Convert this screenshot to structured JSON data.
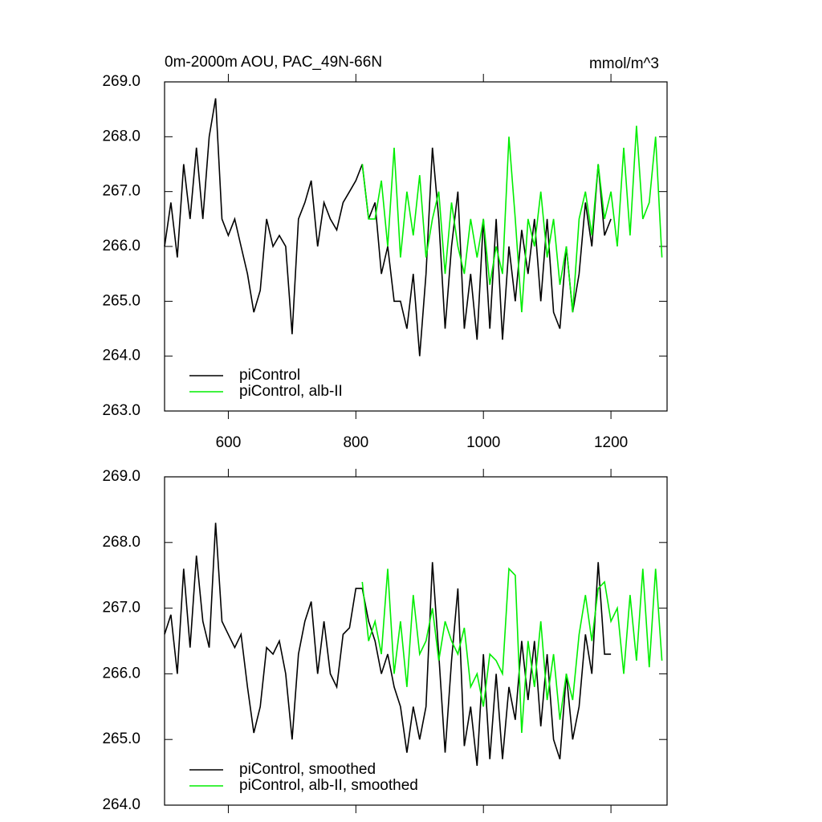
{
  "chart_data": [
    {
      "type": "line",
      "title": "0m-2000m AOU, PAC_49N-66N",
      "units": "mmol/m^3",
      "x": [
        500,
        510,
        520,
        530,
        540,
        550,
        560,
        570,
        580,
        590,
        600,
        610,
        620,
        630,
        640,
        650,
        660,
        670,
        680,
        690,
        700,
        710,
        720,
        730,
        740,
        750,
        760,
        770,
        780,
        790,
        800,
        810,
        820,
        830,
        840,
        850,
        860,
        870,
        880,
        890,
        900,
        910,
        920,
        930,
        940,
        950,
        960,
        970,
        980,
        990,
        1000,
        1010,
        1020,
        1030,
        1040,
        1050,
        1060,
        1070,
        1080,
        1090,
        1100,
        1110,
        1120,
        1130,
        1140,
        1150,
        1160,
        1170,
        1180,
        1190,
        1200,
        1210,
        1220,
        1230,
        1240,
        1250,
        1260,
        1270,
        1280
      ],
      "series": [
        {
          "name": "piControl",
          "color": "#000000",
          "values": [
            266.0,
            266.8,
            265.8,
            267.5,
            266.5,
            267.8,
            266.5,
            268.0,
            268.7,
            266.5,
            266.2,
            266.5,
            266.0,
            265.5,
            264.8,
            265.2,
            266.5,
            266.0,
            266.2,
            266.0,
            264.4,
            266.5,
            266.8,
            267.2,
            266.0,
            266.8,
            266.5,
            266.3,
            266.8,
            267.0,
            267.2,
            267.5,
            266.5,
            266.8,
            265.5,
            266.0,
            265.0,
            265.0,
            264.5,
            265.5,
            264.0,
            265.5,
            267.8,
            266.5,
            264.5,
            266.0,
            267.0,
            264.5,
            265.5,
            264.3,
            266.5,
            264.5,
            266.5,
            264.3,
            266.0,
            265.0,
            266.3,
            265.5,
            266.5,
            265.0,
            266.5,
            264.8,
            264.5,
            266.0,
            264.8,
            265.5,
            266.8,
            266.0,
            267.5,
            266.2,
            266.5,
            null,
            null,
            null,
            null,
            null,
            null,
            null,
            null
          ]
        },
        {
          "name": "piControl, alb-II",
          "color": "#00ee00",
          "values": [
            null,
            null,
            null,
            null,
            null,
            null,
            null,
            null,
            null,
            null,
            null,
            null,
            null,
            null,
            null,
            null,
            null,
            null,
            null,
            null,
            null,
            null,
            null,
            null,
            null,
            null,
            null,
            null,
            null,
            null,
            null,
            267.5,
            266.5,
            266.5,
            267.2,
            266.0,
            267.8,
            265.8,
            267.0,
            266.2,
            267.3,
            265.8,
            266.5,
            267.0,
            265.5,
            266.8,
            266.0,
            265.5,
            266.5,
            265.8,
            266.5,
            265.3,
            266.0,
            265.5,
            268.0,
            266.5,
            264.8,
            266.5,
            266.0,
            267.0,
            265.8,
            266.5,
            265.3,
            266.0,
            264.8,
            266.5,
            267.0,
            266.2,
            267.5,
            266.5,
            267.0,
            266.0,
            267.8,
            266.2,
            268.2,
            266.5,
            266.8,
            268.0,
            265.8
          ]
        }
      ],
      "xlim": [
        500,
        1288
      ],
      "xticks": [
        600,
        800,
        1000,
        1200
      ],
      "xtick_labels": true,
      "ylim": [
        263,
        269
      ],
      "yticks": [
        {
          "value": 263,
          "label": "263.0"
        },
        {
          "value": 264,
          "label": "264.0"
        },
        {
          "value": 265,
          "label": "265.0"
        },
        {
          "value": 266,
          "label": "266.0"
        },
        {
          "value": 267,
          "label": "267.0"
        },
        {
          "value": 268,
          "label": "268.0"
        },
        {
          "value": 269,
          "label": "269.0"
        }
      ],
      "legend": "lower left"
    },
    {
      "type": "line",
      "x": [
        500,
        510,
        520,
        530,
        540,
        550,
        560,
        570,
        580,
        590,
        600,
        610,
        620,
        630,
        640,
        650,
        660,
        670,
        680,
        690,
        700,
        710,
        720,
        730,
        740,
        750,
        760,
        770,
        780,
        790,
        800,
        810,
        820,
        830,
        840,
        850,
        860,
        870,
        880,
        890,
        900,
        910,
        920,
        930,
        940,
        950,
        960,
        970,
        980,
        990,
        1000,
        1010,
        1020,
        1030,
        1040,
        1050,
        1060,
        1070,
        1080,
        1090,
        1100,
        1110,
        1120,
        1130,
        1140,
        1150,
        1160,
        1170,
        1180,
        1190,
        1200,
        1210,
        1220,
        1230,
        1240,
        1250,
        1260,
        1270,
        1280
      ],
      "series": [
        {
          "name": "piControl, smoothed",
          "color": "#000000",
          "values": [
            266.6,
            266.9,
            266.0,
            267.6,
            266.4,
            267.8,
            266.8,
            266.4,
            268.3,
            266.8,
            266.6,
            266.4,
            266.6,
            265.8,
            265.1,
            265.5,
            266.4,
            266.3,
            266.5,
            266.0,
            265.0,
            266.3,
            266.8,
            267.1,
            266.0,
            266.8,
            266.0,
            265.8,
            266.6,
            266.7,
            267.3,
            267.3,
            266.8,
            266.5,
            266.0,
            266.3,
            265.8,
            265.5,
            264.8,
            265.5,
            265.0,
            265.5,
            267.7,
            266.3,
            264.8,
            266.2,
            267.3,
            264.9,
            265.5,
            264.6,
            266.3,
            264.7,
            266.0,
            264.7,
            265.8,
            265.3,
            266.5,
            265.6,
            266.5,
            265.2,
            266.3,
            265.0,
            264.7,
            266.0,
            265.0,
            265.5,
            266.6,
            266.0,
            267.7,
            266.3,
            266.3,
            null,
            null,
            null,
            null,
            null,
            null,
            null,
            null
          ]
        },
        {
          "name": "piControl, alb-II, smoothed",
          "color": "#00ee00",
          "values": [
            null,
            null,
            null,
            null,
            null,
            null,
            null,
            null,
            null,
            null,
            null,
            null,
            null,
            null,
            null,
            null,
            null,
            null,
            null,
            null,
            null,
            null,
            null,
            null,
            null,
            null,
            null,
            null,
            null,
            null,
            null,
            267.4,
            266.5,
            266.8,
            266.3,
            267.6,
            266.0,
            266.8,
            265.8,
            267.2,
            266.3,
            266.5,
            267.0,
            266.2,
            266.8,
            266.5,
            266.3,
            266.7,
            265.8,
            266.0,
            265.5,
            266.3,
            266.2,
            266.0,
            267.6,
            267.5,
            265.1,
            266.5,
            265.8,
            266.8,
            265.6,
            266.3,
            265.3,
            266.0,
            265.6,
            266.6,
            267.2,
            266.5,
            267.3,
            267.4,
            266.8,
            267.0,
            266.0,
            267.2,
            266.2,
            267.6,
            266.1,
            267.6,
            266.2
          ]
        }
      ],
      "xlim": [
        500,
        1288
      ],
      "xticks": [
        600,
        800,
        1000,
        1200
      ],
      "xtick_labels": false,
      "ylim": [
        264,
        269
      ],
      "yticks": [
        {
          "value": 264,
          "label": "264.0"
        },
        {
          "value": 265,
          "label": "265.0"
        },
        {
          "value": 266,
          "label": "266.0"
        },
        {
          "value": 267,
          "label": "267.0"
        },
        {
          "value": 268,
          "label": "268.0"
        },
        {
          "value": 269,
          "label": "269.0"
        }
      ],
      "legend": "lower left"
    }
  ]
}
